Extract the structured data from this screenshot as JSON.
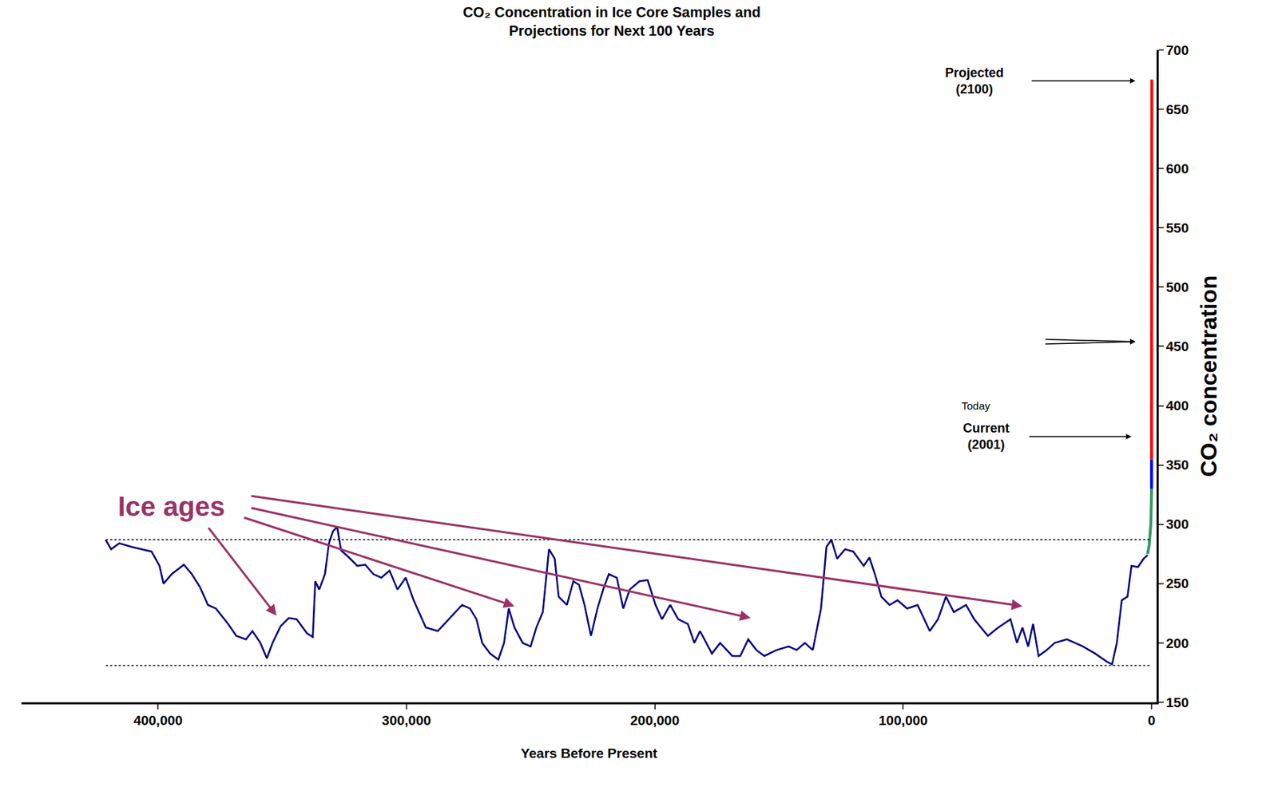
{
  "chart_data": {
    "type": "line",
    "title": "CO₂ Concentration in Ice Core Samples and Projections for Next 100 Years",
    "x_label": "Years Before Present",
    "y_label": "CO₂ concentration",
    "xlim": [
      455000,
      -2000
    ],
    "ylim": [
      150,
      700
    ],
    "xticks": [
      {
        "value": 400000,
        "label": "400,000"
      },
      {
        "value": 300000,
        "label": "300,000"
      },
      {
        "value": 200000,
        "label": "200,000"
      },
      {
        "value": 100000,
        "label": "100,000"
      },
      0
    ],
    "yticks": [
      150,
      200,
      250,
      300,
      350,
      400,
      450,
      500,
      550,
      600,
      650,
      700
    ],
    "grid": false,
    "series": [
      {
        "color": "#000080",
        "line_style": "solid",
        "x": [
          421100,
          418900,
          415600,
          410700,
          402600,
          399400,
          397800,
          394500,
          389600,
          386400,
          383100,
          379900,
          376700,
          371800,
          368500,
          364600,
          362000,
          358800,
          356200,
          353900,
          350700,
          347400,
          344200,
          340000,
          337700,
          336700,
          335100,
          332800,
          331200,
          329600,
          327900,
          326300,
          323100,
          319800,
          316600,
          313300,
          310100,
          306800,
          303600,
          300300,
          297100,
          292200,
          287400,
          282500,
          277600,
          274400,
          271800,
          269500,
          266300,
          263000,
          260700,
          258800,
          256500,
          253200,
          250000,
          247700,
          245100,
          242600,
          240300,
          238700,
          235400,
          232800,
          230500,
          228300,
          225700,
          223100,
          220800,
          218500,
          215300,
          212700,
          210100,
          206200,
          202900,
          199700,
          197100,
          193800,
          190600,
          186700,
          184100,
          181800,
          177000,
          173700,
          168800,
          165600,
          162400,
          159100,
          155900,
          151000,
          146100,
          142900,
          139600,
          136400,
          133100,
          130900,
          128900,
          126600,
          123400,
          120100,
          115900,
          113600,
          111400,
          108800,
          105500,
          102300,
          98400,
          94200,
          89300,
          86000,
          82800,
          79600,
          74700,
          71400,
          65900,
          61700,
          56800,
          54200,
          52000,
          49700,
          47700,
          45500,
          42200,
          39000,
          34100,
          27600,
          22700,
          17900,
          15900,
          14000,
          12000,
          9700,
          8100,
          5500,
          3200,
          1600
        ],
        "values": [
          287,
          279,
          284,
          281,
          277,
          265,
          250,
          258,
          266,
          258,
          247,
          232,
          229,
          216,
          206,
          203,
          210,
          200,
          187,
          200,
          214,
          221,
          220,
          208,
          205,
          252,
          245,
          258,
          284,
          294,
          298,
          278,
          272,
          265,
          266,
          258,
          255,
          261,
          245,
          255,
          236,
          213,
          210,
          221,
          232,
          229,
          220,
          200,
          191,
          186,
          200,
          229,
          213,
          200,
          197,
          213,
          226,
          279,
          271,
          239,
          232,
          252,
          249,
          232,
          206,
          229,
          245,
          258,
          255,
          229,
          245,
          252,
          253,
          232,
          220,
          232,
          220,
          216,
          200,
          210,
          191,
          200,
          189,
          189,
          203,
          194,
          189,
          194,
          197,
          194,
          200,
          194,
          229,
          281,
          287,
          271,
          279,
          277,
          265,
          272,
          258,
          239,
          232,
          236,
          229,
          232,
          210,
          220,
          239,
          226,
          232,
          220,
          206,
          213,
          220,
          200,
          213,
          197,
          216,
          189,
          194,
          200,
          203,
          197,
          191,
          184,
          182,
          200,
          236,
          239,
          265,
          264,
          271,
          274
        ]
      },
      {
        "color": "#339966",
        "line_style": "solid",
        "x": [
          1600,
          1000,
          300,
          0
        ],
        "values": [
          275,
          282,
          300,
          330
        ]
      },
      {
        "color": "#0000ff",
        "line_style": "solid",
        "x": [
          0,
          0
        ],
        "values": [
          330,
          355
        ]
      },
      {
        "color": "#ff0000",
        "line_style": "solid",
        "x": [
          0,
          -100
        ],
        "values": [
          355,
          675
        ]
      },
      {
        "color": "#000000",
        "line_style": "dotted",
        "x": [
          421000,
          0
        ],
        "values": [
          287,
          287
        ]
      },
      {
        "color": "#000000",
        "line_style": "dotted",
        "x": [
          421000,
          0
        ],
        "values": [
          181,
          181
        ]
      }
    ],
    "annotations": [
      {
        "lines": [
          "Projected",
          "(2100)"
        ],
        "x": 71400,
        "y": 674,
        "arrows": [
          {
            "from": [
              48700,
              674
            ],
            "to": [
              6500,
              674
            ]
          }
        ]
      },
      {
        "lines": [
          "Today"
        ],
        "x": 70500,
        "y": 400
      },
      {
        "lines": [
          "Current",
          "(2001)"
        ],
        "x": 66600,
        "y": 374,
        "arrows": [
          {
            "from": [
              49700,
              374
            ],
            "to": [
              8100,
              374
            ]
          }
        ]
      },
      {
        "arrows": [
          {
            "from": [
              43200,
              456
            ],
            "to": [
              6500,
              454
            ]
          },
          {
            "from": [
              43200,
              452
            ],
            "to": [
              6500,
              454
            ]
          }
        ]
      },
      {
        "lines": [
          "Ice ages"
        ],
        "x": 394500,
        "y": 315,
        "color": "#993366",
        "arrows": [
          {
            "from": [
              380000,
              298
            ],
            "to": [
              352300,
              223
            ]
          },
          {
            "from": [
              365800,
              306
            ],
            "to": [
              256500,
              231
            ]
          },
          {
            "from": [
              362900,
              314
            ],
            "to": [
              161400,
              221
            ]
          },
          {
            "from": [
              362900,
              324
            ],
            "to": [
              52000,
              231
            ]
          }
        ]
      }
    ]
  }
}
